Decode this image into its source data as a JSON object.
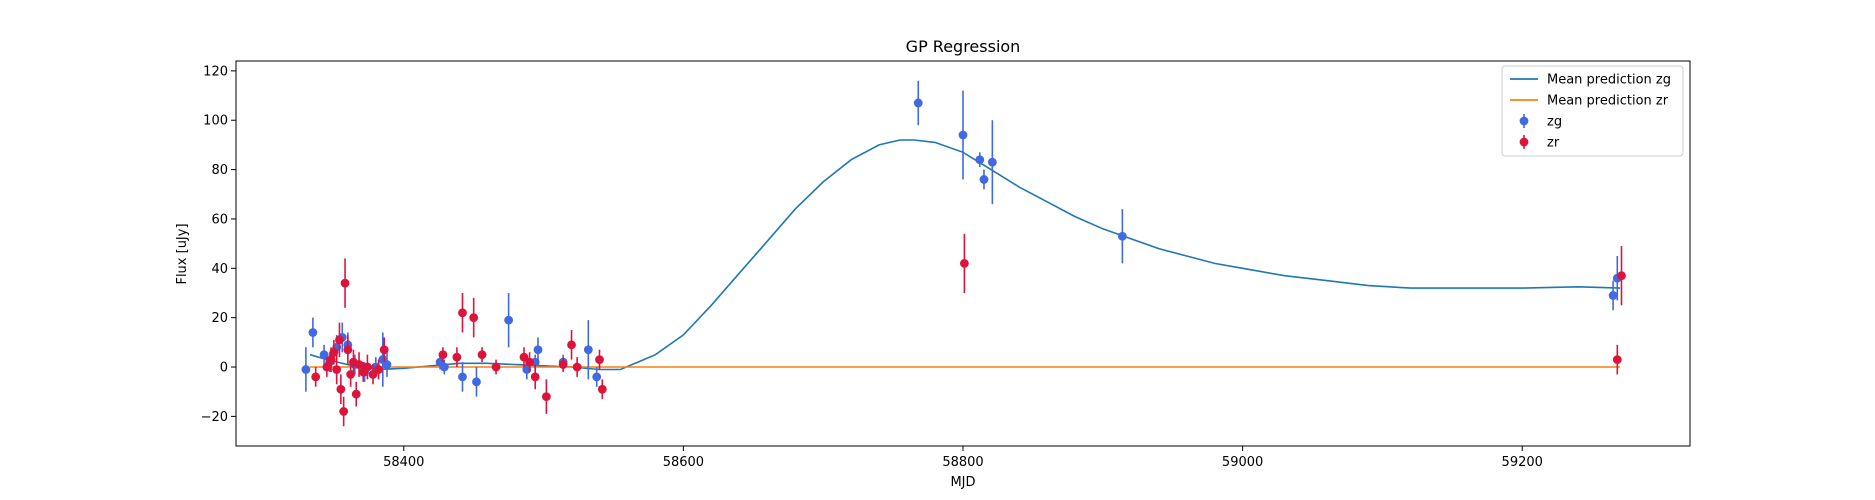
{
  "chart_data": {
    "type": "scatter",
    "title": "GP Regression",
    "xlabel": "MJD",
    "ylabel": "Flux [uJy]",
    "xlim": [
      58280,
      59320
    ],
    "ylim": [
      -32,
      124
    ],
    "xticks": [
      58400,
      58600,
      58800,
      59000,
      59200
    ],
    "yticks": [
      -20,
      0,
      20,
      40,
      60,
      80,
      100,
      120
    ],
    "grid": false,
    "legend_position": "top-right",
    "colors": {
      "line_zg": "#1f77b4",
      "line_zr": "#ff7f0e",
      "points_zg": "#4169e1",
      "points_zr": "#dc143c"
    },
    "lines": [
      {
        "name": "Mean prediction zg",
        "x": [
          58333,
          58345,
          58360,
          58380,
          58400,
          58420,
          58440,
          58460,
          58480,
          58500,
          58520,
          58540,
          58555,
          58580,
          58600,
          58620,
          58640,
          58660,
          58680,
          58700,
          58720,
          58740,
          58755,
          58765,
          58780,
          58800,
          58820,
          58840,
          58860,
          58880,
          58900,
          58920,
          58940,
          58960,
          58980,
          59000,
          59030,
          59060,
          59090,
          59120,
          59160,
          59200,
          59240,
          59270
        ],
        "y": [
          5,
          3,
          1,
          -1,
          -0.5,
          0.5,
          1.5,
          1.5,
          1,
          0.5,
          0,
          -1,
          -1,
          5,
          13,
          25,
          38,
          51,
          64,
          75,
          84,
          90,
          92,
          92,
          91,
          87,
          80,
          73,
          67,
          61,
          56,
          52,
          48,
          45,
          42,
          40,
          37,
          35,
          33,
          32,
          32,
          32,
          32.5,
          32
        ]
      },
      {
        "name": "Mean prediction zr",
        "x": [
          58333,
          58400,
          58500,
          58600,
          58800,
          59000,
          59200,
          59270
        ],
        "y": [
          0,
          0,
          0,
          0,
          0,
          0,
          0,
          0
        ]
      }
    ],
    "series": [
      {
        "name": "zg",
        "points": [
          {
            "x": 58330,
            "y": -1,
            "err": 9
          },
          {
            "x": 58335,
            "y": 14,
            "err": 6
          },
          {
            "x": 58343,
            "y": 5,
            "err": 4
          },
          {
            "x": 58347,
            "y": 2,
            "err": 4
          },
          {
            "x": 58352,
            "y": 8,
            "err": 5
          },
          {
            "x": 58356,
            "y": 12,
            "err": 6
          },
          {
            "x": 58360,
            "y": 9,
            "err": 5
          },
          {
            "x": 58365,
            "y": 1,
            "err": 4
          },
          {
            "x": 58372,
            "y": -2,
            "err": 4
          },
          {
            "x": 58380,
            "y": 0,
            "err": 4
          },
          {
            "x": 58385,
            "y": 3,
            "err": 11
          },
          {
            "x": 58388,
            "y": 1,
            "err": 5
          },
          {
            "x": 58426,
            "y": 2,
            "err": 3
          },
          {
            "x": 58429,
            "y": 0,
            "err": 3
          },
          {
            "x": 58442,
            "y": -4,
            "err": 6
          },
          {
            "x": 58452,
            "y": -6,
            "err": 6
          },
          {
            "x": 58475,
            "y": 19,
            "err": 11
          },
          {
            "x": 58488,
            "y": -1,
            "err": 4
          },
          {
            "x": 58494,
            "y": 2,
            "err": 3
          },
          {
            "x": 58496,
            "y": 7,
            "err": 5
          },
          {
            "x": 58514,
            "y": 2,
            "err": 3
          },
          {
            "x": 58532,
            "y": 7,
            "err": 12
          },
          {
            "x": 58538,
            "y": -4,
            "err": 4
          },
          {
            "x": 58768,
            "y": 107,
            "err": 9
          },
          {
            "x": 58800,
            "y": 94,
            "err": 18
          },
          {
            "x": 58812,
            "y": 84,
            "err": 3
          },
          {
            "x": 58815,
            "y": 76,
            "err": 4
          },
          {
            "x": 58821,
            "y": 83,
            "err": 17
          },
          {
            "x": 58914,
            "y": 53,
            "err": 11
          },
          {
            "x": 59265,
            "y": 29,
            "err": 6
          },
          {
            "x": 59268,
            "y": 36,
            "err": 9
          }
        ]
      },
      {
        "name": "zr",
        "points": [
          {
            "x": 58337,
            "y": -4,
            "err": 4
          },
          {
            "x": 58345,
            "y": 0,
            "err": 4
          },
          {
            "x": 58348,
            "y": 3,
            "err": 5
          },
          {
            "x": 58350,
            "y": 6,
            "err": 5
          },
          {
            "x": 58352,
            "y": -1,
            "err": 6
          },
          {
            "x": 58354,
            "y": 11,
            "err": 7
          },
          {
            "x": 58355,
            "y": -9,
            "err": 6
          },
          {
            "x": 58357,
            "y": -18,
            "err": 6
          },
          {
            "x": 58358,
            "y": 34,
            "err": 10
          },
          {
            "x": 58360,
            "y": 7,
            "err": 6
          },
          {
            "x": 58362,
            "y": -3,
            "err": 5
          },
          {
            "x": 58364,
            "y": 2,
            "err": 5
          },
          {
            "x": 58366,
            "y": -11,
            "err": 5
          },
          {
            "x": 58368,
            "y": 1,
            "err": 5
          },
          {
            "x": 58371,
            "y": -2,
            "err": 4
          },
          {
            "x": 58374,
            "y": 0,
            "err": 5
          },
          {
            "x": 58378,
            "y": -3,
            "err": 4
          },
          {
            "x": 58382,
            "y": -1,
            "err": 4
          },
          {
            "x": 58386,
            "y": 7,
            "err": 5
          },
          {
            "x": 58428,
            "y": 5,
            "err": 3
          },
          {
            "x": 58438,
            "y": 4,
            "err": 4
          },
          {
            "x": 58442,
            "y": 22,
            "err": 8
          },
          {
            "x": 58450,
            "y": 20,
            "err": 8
          },
          {
            "x": 58456,
            "y": 5,
            "err": 3
          },
          {
            "x": 58466,
            "y": 0,
            "err": 3
          },
          {
            "x": 58486,
            "y": 4,
            "err": 4
          },
          {
            "x": 58490,
            "y": 2,
            "err": 4
          },
          {
            "x": 58494,
            "y": -4,
            "err": 5
          },
          {
            "x": 58502,
            "y": -12,
            "err": 7
          },
          {
            "x": 58514,
            "y": 1,
            "err": 3
          },
          {
            "x": 58520,
            "y": 9,
            "err": 6
          },
          {
            "x": 58524,
            "y": 0,
            "err": 4
          },
          {
            "x": 58540,
            "y": 3,
            "err": 4
          },
          {
            "x": 58542,
            "y": -9,
            "err": 4
          },
          {
            "x": 58801,
            "y": 42,
            "err": 12
          },
          {
            "x": 59268,
            "y": 3,
            "err": 6
          },
          {
            "x": 59271,
            "y": 37,
            "err": 12
          }
        ]
      }
    ]
  }
}
